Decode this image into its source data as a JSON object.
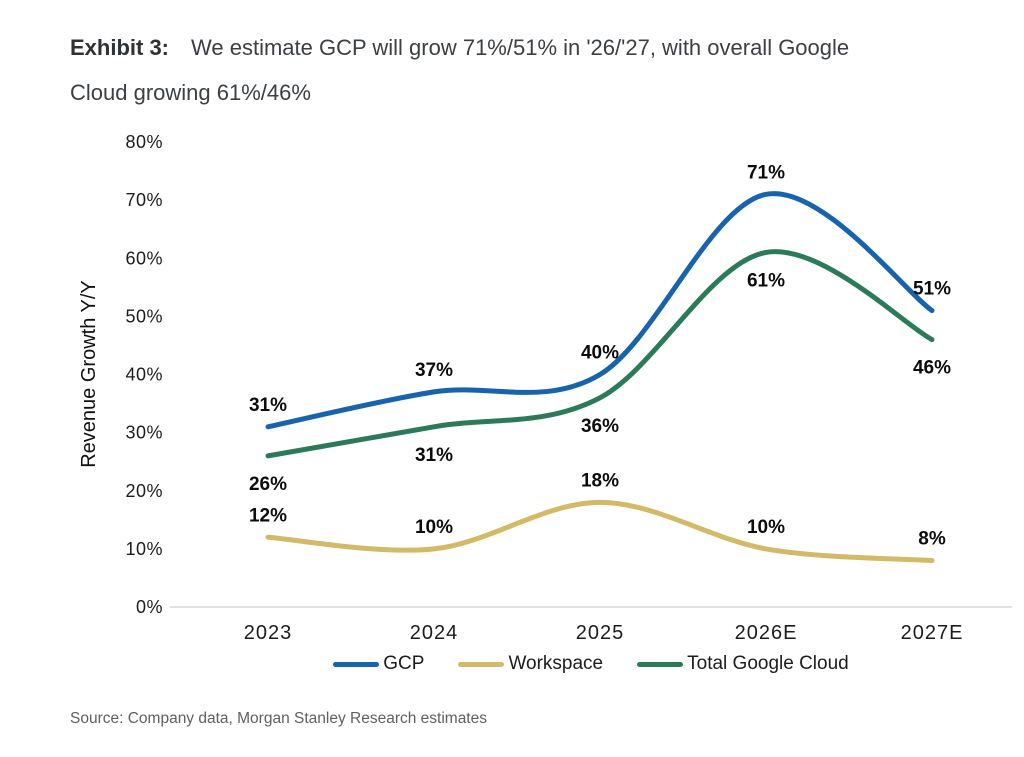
{
  "title": {
    "exhibit_label": "Exhibit 3:",
    "line1": "We estimate GCP will grow 71%/51% in '26/'27, with overall Google",
    "line2": "Cloud growing 61%/46%"
  },
  "source": "Source: Company data, Morgan Stanley Research estimates",
  "chart_data": {
    "type": "line",
    "line_style": "smooth",
    "categories": [
      "2023",
      "2024",
      "2025",
      "2026E",
      "2027E"
    ],
    "xlabel": "",
    "ylabel": "Revenue Growth Y/Y",
    "ylim": [
      0,
      80
    ],
    "ytick_step": 10,
    "ytick_suffix": "%",
    "grid": false,
    "legend_position": "bottom",
    "axis_color": "#d9d9d9",
    "series": [
      {
        "name": "GCP",
        "color": "#1763ae",
        "values": [
          31,
          37,
          40,
          71,
          51
        ],
        "labels": [
          "31%",
          "37%",
          "40%",
          "71%",
          "51%"
        ],
        "label_position": "above"
      },
      {
        "name": "Workspace",
        "color": "#d3ba67",
        "values": [
          12,
          10,
          18,
          10,
          8
        ],
        "labels": [
          "12%",
          "10%",
          "18%",
          "10%",
          "8%"
        ],
        "label_position": "above"
      },
      {
        "name": "Total Google Cloud",
        "color": "#2b7b5b",
        "values": [
          26,
          31,
          36,
          61,
          46
        ],
        "labels": [
          "26%",
          "31%",
          "36%",
          "61%",
          "46%"
        ],
        "label_position": "below"
      }
    ]
  }
}
